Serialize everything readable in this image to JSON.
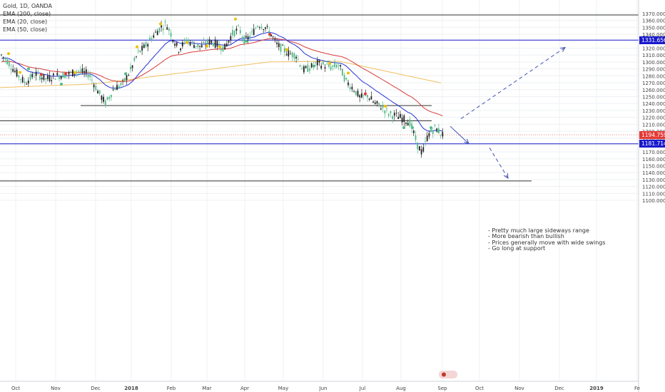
{
  "chart_data": {
    "type": "candlestick",
    "symbol": "Gold, 1D, OANDA",
    "indicators": [
      "EMA (200, close)",
      "EMA (20, close)",
      "EMA (50, close)"
    ],
    "x_tick_labels": [
      "Oct",
      "Nov",
      "Dec",
      "2018",
      "Feb",
      "Mar",
      "Apr",
      "May",
      "Jun",
      "Jul",
      "Aug",
      "Sep",
      "Oct",
      "Nov",
      "Dec",
      "2019",
      "Fe"
    ],
    "y_tick_labels": [
      "1370.000",
      "1360.000",
      "1350.000",
      "1340.000",
      "1330.000",
      "1320.000",
      "1310.000",
      "1300.000",
      "1290.000",
      "1280.000",
      "1270.000",
      "1260.000",
      "1250.000",
      "1240.000",
      "1230.000",
      "1220.000",
      "1210.000",
      "1200.000",
      "1190.000",
      "1180.000",
      "1170.000",
      "1160.000",
      "1150.000",
      "1140.000",
      "1130.000",
      "1120.000",
      "1110.000",
      "1100.000"
    ],
    "ylim": [
      1097,
      1373
    ],
    "price_labels": [
      {
        "value": "1331.656",
        "color": "#1a1acc"
      },
      {
        "value": "1194.759",
        "color": "#e53935"
      },
      {
        "value": "1181.714",
        "color": "#1a1acc"
      }
    ],
    "horizontal_levels": [
      {
        "price": 1368,
        "color": "#333333",
        "from": "Oct",
        "to": "end"
      },
      {
        "price": 1331.656,
        "color": "#1a1acc",
        "from": "Oct",
        "to": "end"
      },
      {
        "price": 1237,
        "color": "#333333",
        "from": "Dec",
        "to": "Sep"
      },
      {
        "price": 1215,
        "color": "#333333",
        "from": "Oct",
        "to": "Sep"
      },
      {
        "price": 1181.714,
        "color": "#1a1acc",
        "from": "Oct",
        "to": "end"
      },
      {
        "price": 1128,
        "color": "#333333",
        "from": "Oct",
        "to": "Nov"
      }
    ],
    "projections": [
      {
        "from_price": 1218,
        "to_price": 1321,
        "direction": "up"
      },
      {
        "from_price": 1207,
        "to_price": 1182,
        "direction": "down"
      },
      {
        "from_price": 1176,
        "to_price": 1132,
        "direction": "down"
      }
    ],
    "annotation_lines": [
      "- Pretty much large sideways range",
      "- More bearish than bullish",
      "- Prices generally move with wide swings",
      "- Go long at support"
    ],
    "ema_colors": {
      "ema20": "#2433d6",
      "ema50": "#d93b3b",
      "ema200": "#f0c060"
    },
    "candle_colors": {
      "up": "#53b987",
      "down": "#222222"
    }
  }
}
